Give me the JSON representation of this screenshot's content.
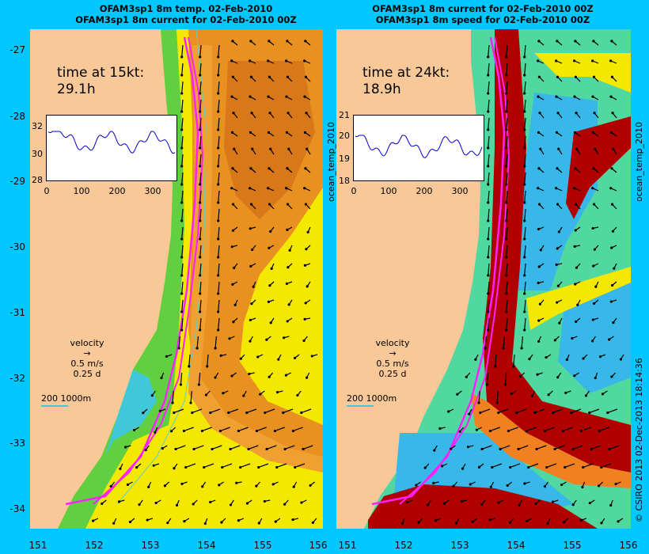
{
  "left": {
    "title1": "OFAM3sp1 8m temp. 02-Feb-2010",
    "title2": "OFAM3sp1 8m current for 02-Feb-2010 00Z",
    "time_label": "time at 15kt:",
    "time_value": "29.1h",
    "inset": {
      "yticks": [
        "32",
        "30",
        "28"
      ],
      "xticks": [
        "0",
        "100",
        "200",
        "300"
      ]
    },
    "velocity": {
      "title": "velocity",
      "speed": "0.5 m/s",
      "duration": "0.25 d"
    },
    "scale_text": "200  1000m",
    "side_label": "ocean_temp_2010"
  },
  "right": {
    "title1": "OFAM3sp1 8m current for 02-Feb-2010 00Z",
    "title2": "OFAM3sp1 8m speed for 02-Feb-2010 00Z",
    "time_label": "time at 24kt:",
    "time_value": "18.9h",
    "inset": {
      "yticks": [
        "21",
        "20",
        "19",
        "18"
      ],
      "xticks": [
        "0",
        "100",
        "200",
        "300"
      ]
    },
    "velocity": {
      "title": "velocity",
      "speed": "0.5 m/s",
      "duration": "0.25 d"
    },
    "scale_text": "200  1000m",
    "side_label": "ocean_temp_2010"
  },
  "yticks": [
    "-27",
    "-28",
    "-29",
    "-30",
    "-31",
    "-32",
    "-33",
    "-34"
  ],
  "xticks": [
    "151",
    "152",
    "153",
    "154",
    "155",
    "156"
  ],
  "credit": "© CSIRO 2013  02-Dec-2013 18:14:36",
  "colors": {
    "background": "#00c8ff",
    "land": "#f8c898",
    "track": "#ff20ff",
    "series": "#0000cc"
  }
}
